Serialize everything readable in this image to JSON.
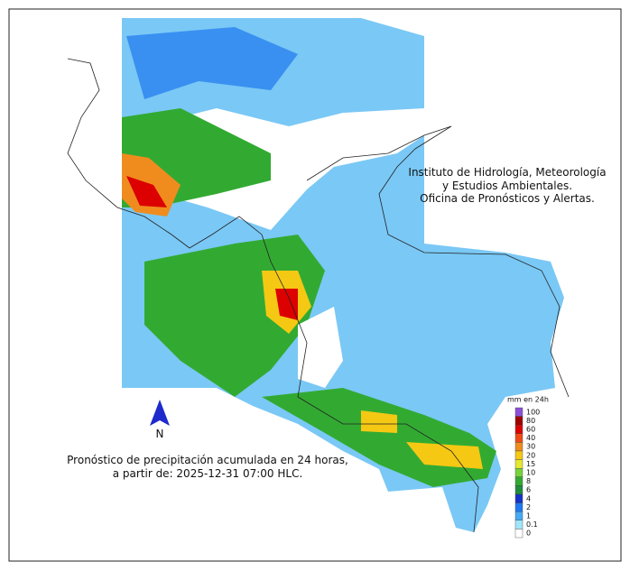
{
  "info": {
    "lines": [
      "Instituto de Hidrología, Meteorología",
      "y Estudios Ambientales.",
      "Oficina de Pronósticos y Alertas."
    ]
  },
  "caption": {
    "lines": [
      "Pronóstico de precipitación acumulada en 24 horas,",
      "a partir de: 2025-12-31 07:00 HLC."
    ]
  },
  "north_arrow": {
    "label": "N"
  },
  "legend": {
    "title": "mm en 24h",
    "items": [
      {
        "label": 100,
        "color": "#8c50d8"
      },
      {
        "label": 80,
        "color": "#a00000"
      },
      {
        "label": 60,
        "color": "#dc0000"
      },
      {
        "label": 40,
        "color": "#f04a14"
      },
      {
        "label": 30,
        "color": "#f08c1e"
      },
      {
        "label": 20,
        "color": "#f5c814"
      },
      {
        "label": 15,
        "color": "#e6e632"
      },
      {
        "label": 10,
        "color": "#78d23c"
      },
      {
        "label": 8,
        "color": "#32aa32"
      },
      {
        "label": 6,
        "color": "#1e8c3c"
      },
      {
        "label": 4,
        "color": "#1432c8"
      },
      {
        "label": 2,
        "color": "#1e78f0"
      },
      {
        "label": 1,
        "color": "#46aaf5"
      },
      {
        "label": 0.1,
        "color": "#a0e6fa"
      },
      {
        "label": 0,
        "color": "#ffffff"
      }
    ]
  }
}
